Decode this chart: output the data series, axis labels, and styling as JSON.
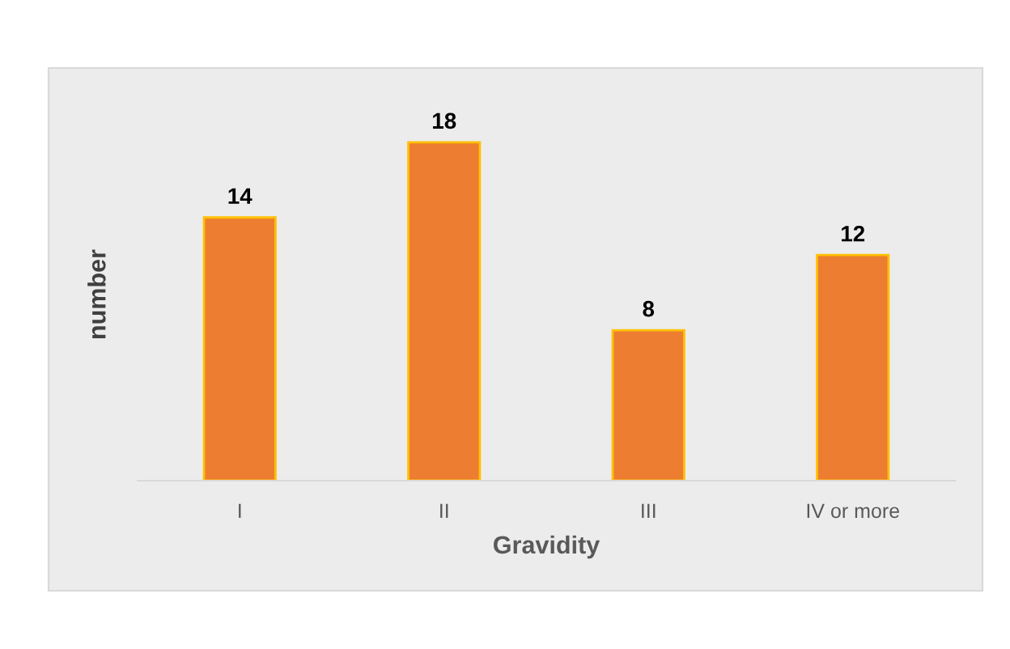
{
  "chart_data": {
    "type": "bar",
    "xlabel": "Gravidity",
    "ylabel": "number",
    "categories": [
      "I",
      "II",
      "III",
      "IV or more"
    ],
    "values": [
      14,
      18,
      8,
      12
    ],
    "colors": [
      "#ed7d31",
      "#ed7d31",
      "#ed7d31",
      "#ed7d31"
    ],
    "data_labels": true,
    "grid": false,
    "legend": false
  }
}
